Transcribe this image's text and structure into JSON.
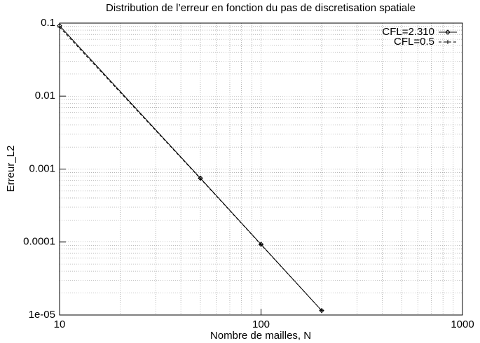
{
  "chart_data": {
    "type": "line",
    "title": "Distribution de l’erreur en fonction du pas de discretisation spatiale",
    "xlabel": "Nombre de mailles, N",
    "ylabel": "Erreur_L2",
    "xscale": "log",
    "yscale": "log",
    "grid": true,
    "legend": "upper right",
    "x": [
      10,
      50,
      100,
      200
    ],
    "series": [
      {
        "name": "CFL=2.310",
        "color": "#000000",
        "linestyle": "solid",
        "marker": "diamond",
        "values": [
          0.092,
          0.00075,
          9.3e-05,
          1.15e-05
        ]
      },
      {
        "name": "CFL=0.5",
        "color": "#000000",
        "linestyle": "dashed",
        "marker": "plus",
        "values": [
          0.088,
          0.00074,
          9.2e-05,
          1.15e-05
        ]
      }
    ],
    "xlim": [
      10,
      1000
    ],
    "ylim": [
      1e-05,
      0.1
    ],
    "xticks": [
      10,
      100,
      1000
    ],
    "yticks": [
      {
        "value": 1e-05,
        "label": "1e-05"
      },
      0.0001,
      0.001,
      0.01,
      0.1
    ],
    "xminorticks": [
      20,
      30,
      40,
      50,
      60,
      70,
      80,
      90,
      200,
      300,
      400,
      500,
      600,
      700,
      800,
      900
    ],
    "yminorticks": [
      2e-05,
      3e-05,
      4e-05,
      5e-05,
      6e-05,
      7e-05,
      8e-05,
      9e-05,
      0.0002,
      0.0003,
      0.0004,
      0.0005,
      0.0006,
      0.0007,
      0.0008,
      0.0009,
      0.002,
      0.003,
      0.004,
      0.005,
      0.006,
      0.007,
      0.008,
      0.009,
      0.02,
      0.03,
      0.04,
      0.05,
      0.06,
      0.07,
      0.08,
      0.09
    ]
  }
}
